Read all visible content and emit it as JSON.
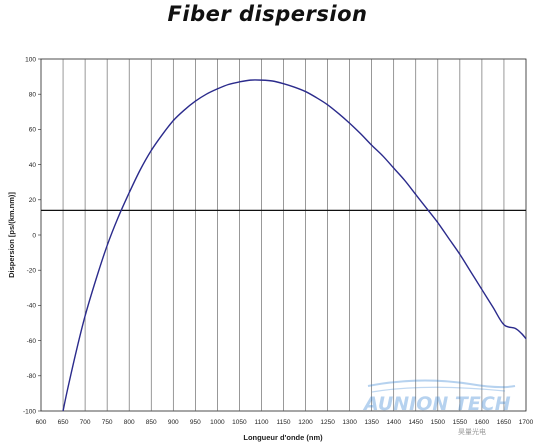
{
  "chart_data": {
    "type": "line",
    "title": "Fiber dispersion",
    "xlabel": "Longueur d'onde (nm)",
    "ylabel": "Dispersion [ps/(km.nm)]",
    "xlim": [
      600,
      1700
    ],
    "ylim": [
      -100,
      100
    ],
    "x_ticks": [
      600,
      650,
      700,
      750,
      800,
      850,
      900,
      950,
      1000,
      1050,
      1100,
      1150,
      1200,
      1250,
      1300,
      1350,
      1400,
      1450,
      1500,
      1550,
      1600,
      1650,
      1700
    ],
    "y_ticks": [
      -100,
      -80,
      -60,
      -40,
      -20,
      0,
      20,
      40,
      60,
      80,
      100
    ],
    "grid": "vertical",
    "reference_line_y": 14,
    "series": [
      {
        "color": "#2b2b8c",
        "x": [
          650,
          660,
          680,
          700,
          725,
          750,
          775,
          800,
          825,
          850,
          875,
          900,
          925,
          950,
          975,
          1000,
          1025,
          1050,
          1075,
          1100,
          1125,
          1150,
          1175,
          1200,
          1225,
          1250,
          1275,
          1300,
          1325,
          1350,
          1375,
          1400,
          1425,
          1450,
          1475,
          1500,
          1525,
          1550,
          1575,
          1600,
          1625,
          1650,
          1675,
          1690,
          1700
        ],
        "y": [
          -100,
          -88,
          -66,
          -46,
          -25,
          -6,
          10,
          24,
          37,
          48,
          57,
          65,
          71,
          76,
          80,
          83,
          85.5,
          87,
          88,
          88,
          87.5,
          86,
          84,
          81.5,
          78,
          74,
          69,
          63.5,
          57.5,
          51,
          45,
          38,
          31,
          23,
          15,
          7,
          -2,
          -11,
          -21,
          -31,
          -41,
          -51,
          -53,
          -56,
          -59
        ]
      }
    ]
  },
  "watermark": {
    "brand": "AUNION TECH",
    "sub_cn": "昊量光电",
    "color": "#2f7fd0"
  }
}
